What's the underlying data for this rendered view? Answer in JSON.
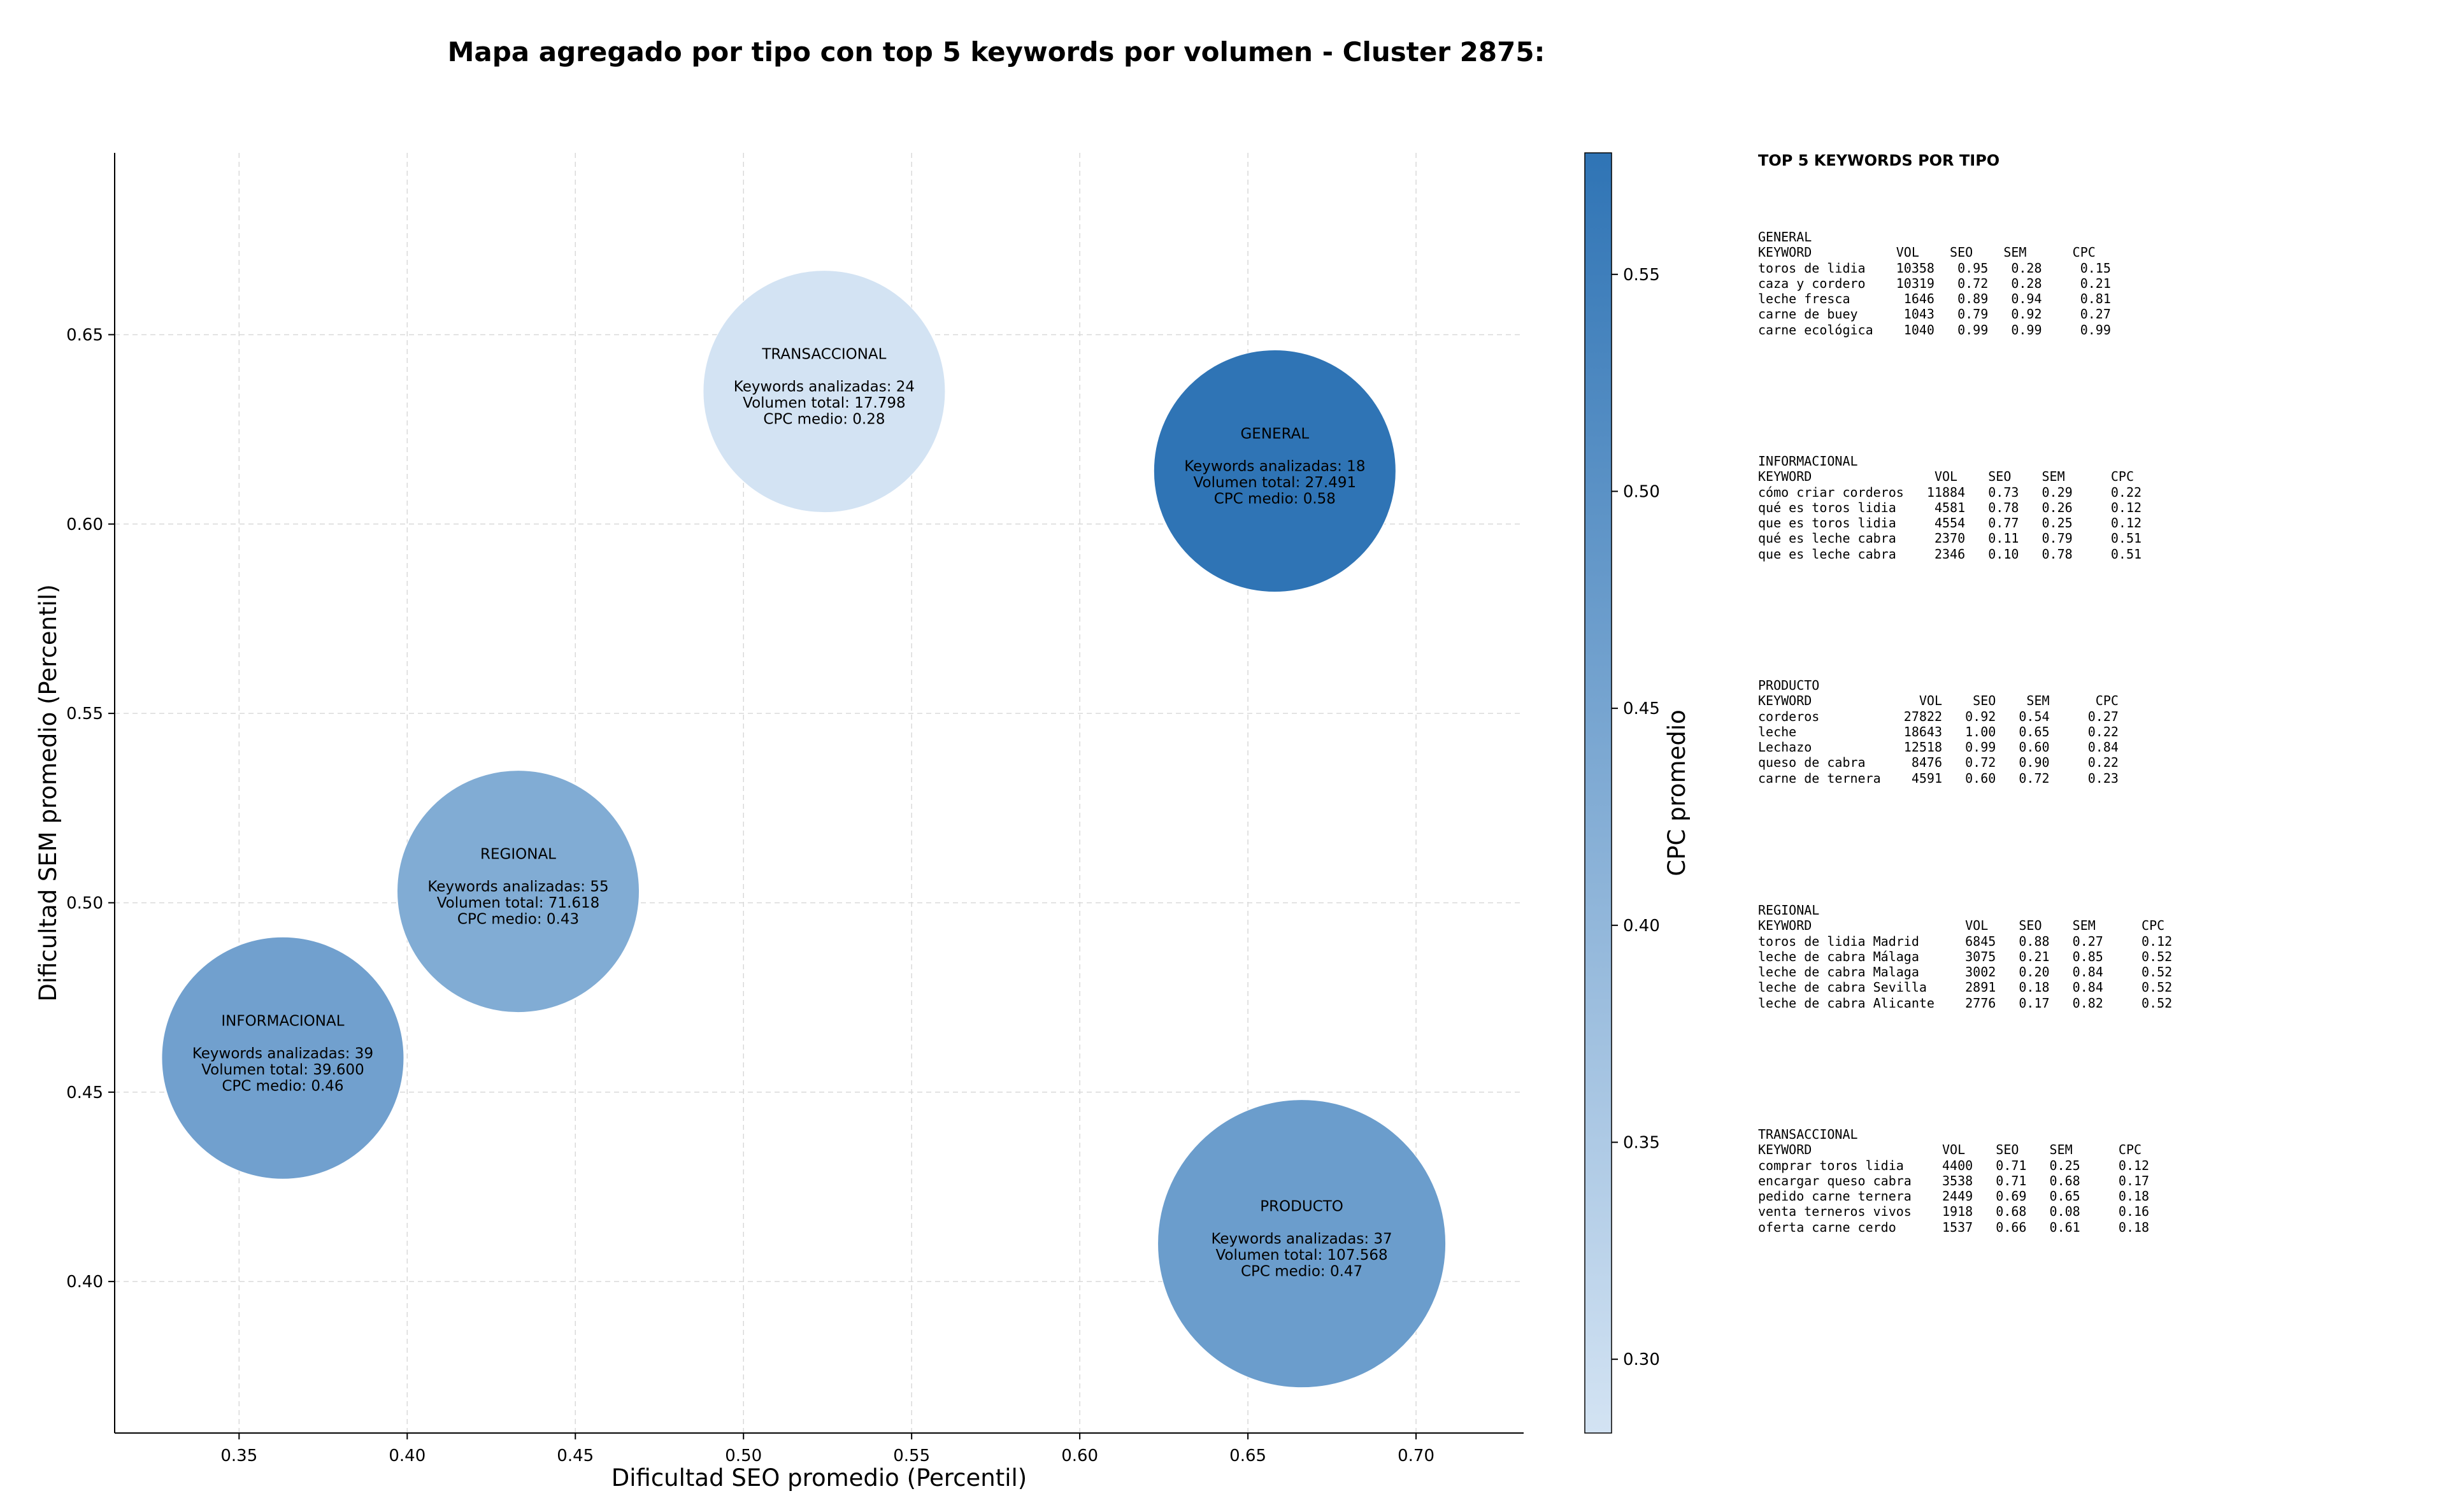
{
  "chart_data": {
    "type": "scatter",
    "title": "Mapa agregado por tipo con top 5 keywords por volumen - Cluster 2875:",
    "xlabel": "Dificultad SEO promedio (Percentil)",
    "ylabel": "Dificultad SEM promedio (Percentil)",
    "xlim": [
      0.313,
      0.732
    ],
    "ylim": [
      0.36,
      0.698
    ],
    "xticks": [
      0.35,
      0.4,
      0.45,
      0.5,
      0.55,
      0.6,
      0.65,
      0.7
    ],
    "yticks": [
      0.4,
      0.45,
      0.5,
      0.55,
      0.6,
      0.65
    ],
    "grid": true,
    "colorbar": {
      "label": "CPC promedio",
      "min": 0.283,
      "max": 0.578,
      "ticks": [
        0.3,
        0.35,
        0.4,
        0.45,
        0.5,
        0.55
      ],
      "colors": [
        "#d3e3f3",
        "#2f74b5"
      ]
    },
    "points": [
      {
        "name": "TRANSACCIONAL",
        "x": 0.524,
        "y": 0.635,
        "cpc": 0.28,
        "keywords": 24,
        "volume": 17798,
        "label_lines": [
          "TRANSACCIONAL",
          "",
          "Keywords analizadas: 24",
          "Volumen total: 17.798",
          "CPC medio: 0.28"
        ]
      },
      {
        "name": "GENERAL",
        "x": 0.658,
        "y": 0.614,
        "cpc": 0.58,
        "keywords": 18,
        "volume": 27491,
        "label_lines": [
          "GENERAL",
          "",
          "Keywords analizadas: 18",
          "Volumen total: 27.491",
          "CPC medio: 0.58"
        ]
      },
      {
        "name": "REGIONAL",
        "x": 0.433,
        "y": 0.503,
        "cpc": 0.43,
        "keywords": 55,
        "volume": 71618,
        "label_lines": [
          "REGIONAL",
          "",
          "Keywords analizadas: 55",
          "Volumen total: 71.618",
          "CPC medio: 0.43"
        ]
      },
      {
        "name": "INFORMACIONAL",
        "x": 0.363,
        "y": 0.459,
        "cpc": 0.46,
        "keywords": 39,
        "volume": 39600,
        "label_lines": [
          "INFORMACIONAL",
          "",
          "Keywords analizadas: 39",
          "Volumen total: 39.600",
          "CPC medio: 0.46"
        ]
      },
      {
        "name": "PRODUCTO",
        "x": 0.666,
        "y": 0.41,
        "cpc": 0.47,
        "keywords": 37,
        "volume": 107568,
        "label_lines": [
          "PRODUCTO",
          "",
          "Keywords analizadas: 37",
          "Volumen total: 107.568",
          "CPC medio: 0.47"
        ]
      }
    ]
  },
  "side_panel": {
    "title": "TOP 5 KEYWORDS POR TIPO",
    "blocks": [
      {
        "name": "GENERAL",
        "lines": [
          "GENERAL",
          "KEYWORD           VOL    SEO    SEM      CPC",
          "toros de lidia    10358   0.95   0.28     0.15",
          "caza y cordero    10319   0.72   0.28     0.21",
          "leche fresca       1646   0.89   0.94     0.81",
          "carne de buey      1043   0.79   0.92     0.27",
          "carne ecológica    1040   0.99   0.99     0.99"
        ]
      },
      {
        "name": "INFORMACIONAL",
        "lines": [
          "INFORMACIONAL",
          "KEYWORD                VOL    SEO    SEM      CPC",
          "cómo criar corderos   11884   0.73   0.29     0.22",
          "qué es toros lidia     4581   0.78   0.26     0.12",
          "que es toros lidia     4554   0.77   0.25     0.12",
          "qué es leche cabra     2370   0.11   0.79     0.51",
          "que es leche cabra     2346   0.10   0.78     0.51"
        ]
      },
      {
        "name": "PRODUCTO",
        "lines": [
          "PRODUCTO",
          "KEYWORD              VOL    SEO    SEM      CPC",
          "corderos           27822   0.92   0.54     0.27",
          "leche              18643   1.00   0.65     0.22",
          "Lechazo            12518   0.99   0.60     0.84",
          "queso de cabra      8476   0.72   0.90     0.22",
          "carne de ternera    4591   0.60   0.72     0.23"
        ]
      },
      {
        "name": "REGIONAL",
        "lines": [
          "REGIONAL",
          "KEYWORD                    VOL    SEO    SEM      CPC",
          "toros de lidia Madrid      6845   0.88   0.27     0.12",
          "leche de cabra Málaga      3075   0.21   0.85     0.52",
          "leche de cabra Malaga      3002   0.20   0.84     0.52",
          "leche de cabra Sevilla     2891   0.18   0.84     0.52",
          "leche de cabra Alicante    2776   0.17   0.82     0.52"
        ]
      },
      {
        "name": "TRANSACCIONAL",
        "lines": [
          "TRANSACCIONAL",
          "KEYWORD                 VOL    SEO    SEM      CPC",
          "comprar toros lidia     4400   0.71   0.25     0.12",
          "encargar queso cabra    3538   0.71   0.68     0.17",
          "pedido carne ternera    2449   0.69   0.65     0.18",
          "venta terneros vivos    1918   0.68   0.08     0.16",
          "oferta carne cerdo      1537   0.66   0.61     0.18"
        ]
      }
    ]
  }
}
